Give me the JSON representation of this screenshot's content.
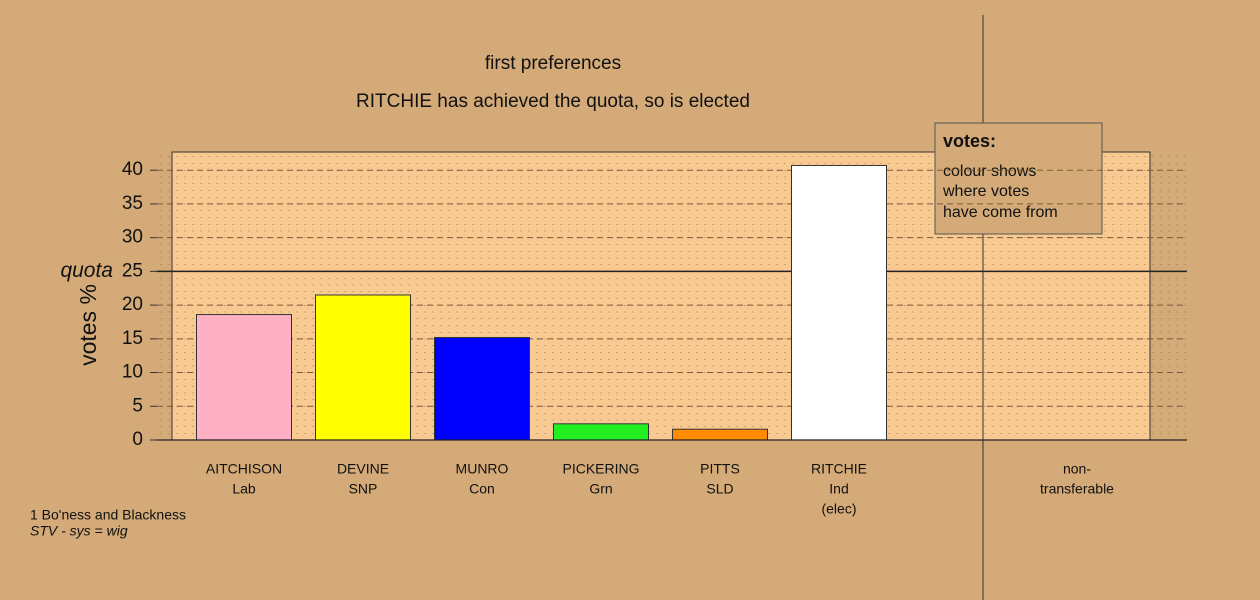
{
  "chart_data": {
    "type": "bar",
    "title": "first preferences",
    "subtitle": "RITCHIE has achieved the quota, so is elected",
    "y_label": "votes %",
    "categories": [
      "AITCHISON",
      "DEVINE",
      "MUNRO",
      "PICKERING",
      "PITTS",
      "RITCHIE",
      "non-"
    ],
    "parties": [
      "Lab",
      "SNP",
      "Con",
      "Grn",
      "SLD",
      "Ind",
      "transferable"
    ],
    "notes": [
      null,
      null,
      null,
      null,
      null,
      "(elec)",
      null
    ],
    "values": [
      18.6,
      21.5,
      15.2,
      2.4,
      1.6,
      40.7,
      0
    ],
    "colors": [
      "#ffb0c4",
      "#ffff00",
      "#0000ff",
      "#22ee22",
      "#ff8c00",
      "#ffffff",
      "#ffffff"
    ],
    "ylim": [
      0,
      42.7
    ],
    "yticks": [
      0,
      5,
      10,
      15,
      20,
      25,
      30,
      35,
      40
    ],
    "grid": true,
    "quota": 25,
    "quota_label": "quota",
    "legend": {
      "title": "votes:",
      "lines": [
        "colour shows",
        "where votes",
        "have come from"
      ]
    },
    "footer": [
      "1 Bo'ness and Blackness",
      "STV - sys = wig"
    ]
  }
}
